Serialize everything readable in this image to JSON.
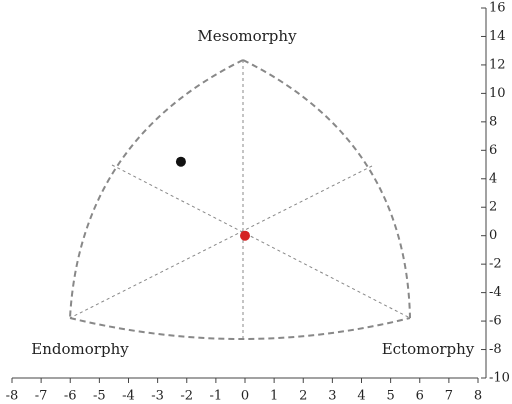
{
  "chart_data": {
    "type": "scatter",
    "annotations": [
      "Mesomorphy",
      "Endomorphy",
      "Ectomorphy"
    ],
    "x": [
      -2.2,
      0
    ],
    "y": [
      5.2,
      0
    ],
    "colors": [
      "#111111",
      "#d42424"
    ],
    "xlim": [
      -8,
      8
    ],
    "ylim": [
      -10,
      16
    ],
    "xticks": [
      -8,
      -7,
      -6,
      -5,
      -4,
      -3,
      -2,
      -1,
      0,
      1,
      2,
      3,
      4,
      5,
      6,
      7,
      8
    ],
    "yticks": [
      -10,
      -8,
      -6,
      -4,
      -2,
      0,
      2,
      4,
      6,
      8,
      10,
      12,
      14,
      16
    ]
  }
}
